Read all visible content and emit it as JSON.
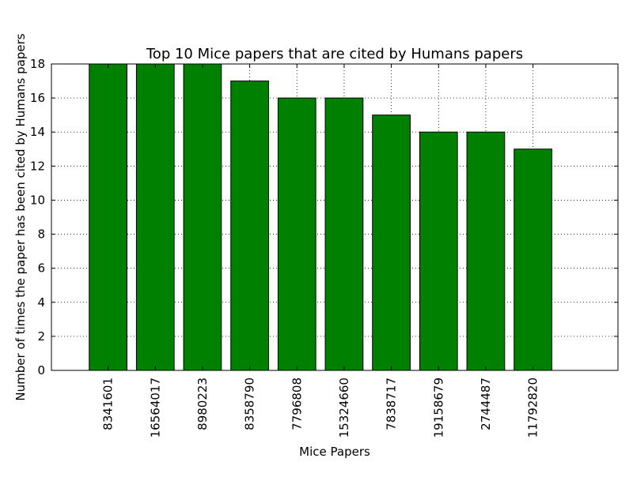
{
  "chart_data": {
    "type": "bar",
    "title": "Top 10 Mice papers that are cited by Humans papers",
    "xlabel": "Mice Papers",
    "ylabel": "Number of times the paper has been cited by Humans papers",
    "categories": [
      "8341601",
      "16564017",
      "8980223",
      "8358790",
      "7796808",
      "15324660",
      "7838717",
      "19158679",
      "2744487",
      "11792820"
    ],
    "values": [
      18,
      18,
      18,
      17,
      16,
      16,
      15,
      14,
      14,
      13
    ],
    "ylim": [
      0,
      18
    ],
    "yticks": [
      0,
      2,
      4,
      6,
      8,
      10,
      12,
      14,
      16,
      18
    ],
    "grid": true,
    "legend": "none",
    "bar_color": "#008000",
    "edge_color": "#000000"
  }
}
